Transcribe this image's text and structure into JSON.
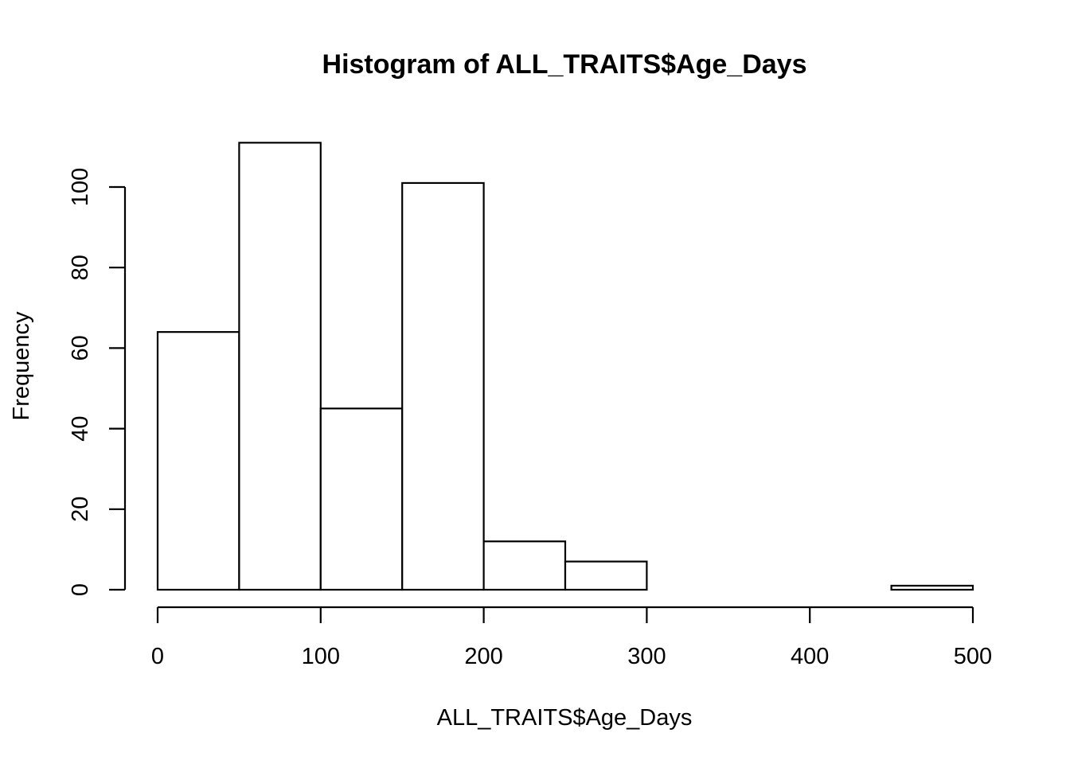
{
  "chart_data": {
    "type": "bar",
    "title": "Histogram of ALL_TRAITS$Age_Days",
    "xlabel": "ALL_TRAITS$Age_Days",
    "ylabel": "Frequency",
    "bins": [
      {
        "from": 0,
        "to": 50,
        "count": 64
      },
      {
        "from": 50,
        "to": 100,
        "count": 111
      },
      {
        "from": 100,
        "to": 150,
        "count": 45
      },
      {
        "from": 150,
        "to": 200,
        "count": 101
      },
      {
        "from": 200,
        "to": 250,
        "count": 12
      },
      {
        "from": 250,
        "to": 300,
        "count": 7
      },
      {
        "from": 300,
        "to": 350,
        "count": 0
      },
      {
        "from": 350,
        "to": 400,
        "count": 0
      },
      {
        "from": 400,
        "to": 450,
        "count": 0
      },
      {
        "from": 450,
        "to": 500,
        "count": 1
      }
    ],
    "xlim": [
      0,
      500
    ],
    "ylim": [
      0,
      111
    ],
    "x_ticks": [
      0,
      100,
      200,
      300,
      400,
      500
    ],
    "y_ticks": [
      0,
      20,
      40,
      60,
      80,
      100
    ],
    "grid": false,
    "legend": "none"
  }
}
